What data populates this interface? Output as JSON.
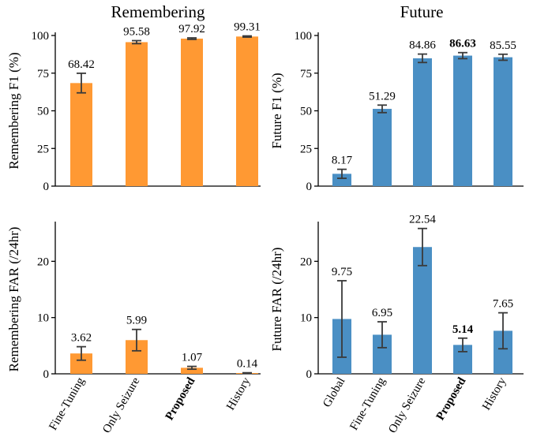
{
  "colors": {
    "remembering": "#FF9933",
    "future": "#4A8FC4",
    "error": "#3a3a3a"
  },
  "chart_data": [
    {
      "id": "rem_f1",
      "type": "bar",
      "title": "Remembering",
      "xlabel": "",
      "ylabel": "Remembering F1 (%)",
      "ylim": [
        0,
        100
      ],
      "yticks": [
        "0",
        "25",
        "50",
        "75",
        "100"
      ],
      "categories": [
        "Fine-Tuning",
        "Only Seizure",
        "Proposed",
        "History"
      ],
      "bold_categories": [],
      "values": [
        68.42,
        95.58,
        97.92,
        99.31
      ],
      "errors": [
        6.5,
        1.0,
        0.5,
        0.4
      ],
      "value_labels": [
        "68.42",
        "95.58",
        "97.92",
        "99.31"
      ],
      "bold_values": [],
      "show_xticklabels": false
    },
    {
      "id": "fut_f1",
      "type": "bar",
      "title": "Future",
      "xlabel": "",
      "ylabel": "Future F1 (%)",
      "ylim": [
        0,
        100
      ],
      "yticks": [
        "0",
        "25",
        "50",
        "75",
        "100"
      ],
      "categories": [
        "Global",
        "Fine-Tuning",
        "Only Seizure",
        "Proposed",
        "History"
      ],
      "bold_categories": [],
      "values": [
        8.17,
        51.29,
        84.86,
        86.63,
        85.55
      ],
      "errors": [
        3.0,
        2.5,
        2.8,
        2.0,
        2.0
      ],
      "value_labels": [
        "8.17",
        "51.29",
        "84.86",
        "86.63",
        "85.55"
      ],
      "bold_values": [
        3
      ],
      "show_xticklabels": false
    },
    {
      "id": "rem_far",
      "type": "bar",
      "title": "",
      "xlabel": "",
      "ylabel": "Remembering FAR (/24hr)",
      "ylim": [
        0,
        26.5
      ],
      "yticks": [
        "0",
        "10",
        "20"
      ],
      "categories": [
        "Fine-Tuning",
        "Only Seizure",
        "Proposed",
        "History"
      ],
      "bold_categories": [
        2
      ],
      "values": [
        3.62,
        5.99,
        1.07,
        0.14
      ],
      "errors": [
        1.2,
        1.9,
        0.25,
        0.05
      ],
      "value_labels": [
        "3.62",
        "5.99",
        "1.07",
        "0.14"
      ],
      "bold_values": [],
      "show_xticklabels": true
    },
    {
      "id": "fut_far",
      "type": "bar",
      "title": "",
      "xlabel": "",
      "ylabel": "Future FAR (/24hr)",
      "ylim": [
        0,
        26.5
      ],
      "yticks": [
        "0",
        "10",
        "20"
      ],
      "categories": [
        "Global",
        "Fine-Tuning",
        "Only Seizure",
        "Proposed",
        "History"
      ],
      "bold_categories": [
        3
      ],
      "values": [
        9.75,
        6.95,
        22.54,
        5.14,
        7.65
      ],
      "errors": [
        6.8,
        2.3,
        3.3,
        1.2,
        3.2
      ],
      "value_labels": [
        "9.75",
        "6.95",
        "22.54",
        "5.14",
        "7.65"
      ],
      "bold_values": [
        3
      ],
      "show_xticklabels": true
    }
  ]
}
